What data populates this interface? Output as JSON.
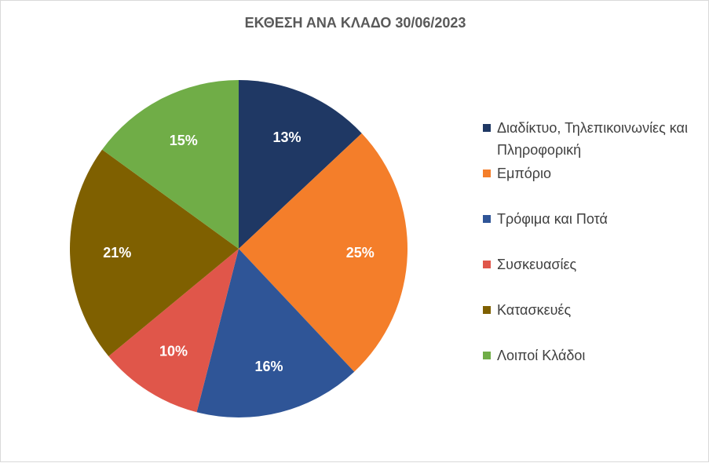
{
  "chart_data": {
    "type": "pie",
    "title": "ΕΚΘΕΣΗ ΑΝΑ ΚΛΑΔΟ 30/06/2023",
    "legend_position": "right",
    "slices": [
      {
        "name": "Διαδίκτυο, Τηλεπικοινωνίες και Πληροφορική",
        "value": 13,
        "label": "13%",
        "color": "#1f3864"
      },
      {
        "name": "Εμπόριο",
        "value": 25,
        "label": "25%",
        "color": "#f47e2a"
      },
      {
        "name": "Τρόφιμα και Ποτά",
        "value": 16,
        "label": "16%",
        "color": "#2f5597"
      },
      {
        "name": "Συσκευασίες",
        "value": 10,
        "label": "10%",
        "color": "#e0564a"
      },
      {
        "name": "Κατασκευές",
        "value": 21,
        "label": "21%",
        "color": "#7f6000"
      },
      {
        "name": "Λοιποί Κλάδοι",
        "value": 15,
        "label": "15%",
        "color": "#70ad47"
      }
    ]
  }
}
